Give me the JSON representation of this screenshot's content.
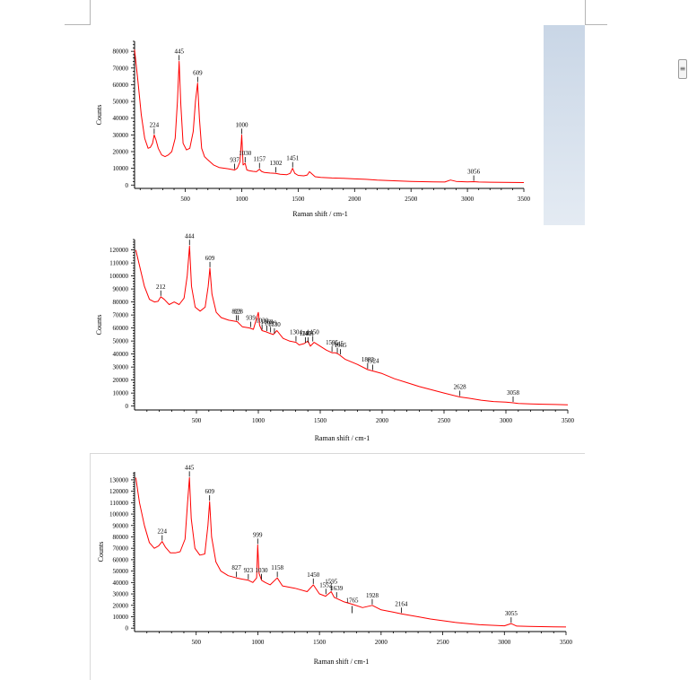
{
  "colors": {
    "spectrum": "#ff0000",
    "axis": "#000000",
    "panel_accent": "#c9d6e6"
  },
  "icons": {
    "side_button": "menu-lines-icon"
  },
  "chart_data": [
    {
      "type": "line",
      "xlabel": "Raman shift / cm-1",
      "ylabel": "Counts",
      "xlim": [
        50,
        3500
      ],
      "ylim": [
        -2000,
        86000
      ],
      "xticks": [
        500,
        1000,
        1500,
        2000,
        2500,
        3000,
        3500
      ],
      "yticks": [
        0,
        10000,
        20000,
        30000,
        40000,
        50000,
        60000,
        70000,
        80000
      ],
      "series": [
        {
          "x": [
            50,
            80,
            110,
            140,
            170,
            190,
            210,
            224,
            240,
            260,
            290,
            320,
            350,
            380,
            410,
            430,
            445,
            460,
            480,
            510,
            540,
            570,
            590,
            609,
            625,
            645,
            670,
            700,
            750,
            800,
            850,
            900,
            937,
            960,
            985,
            1000,
            1012,
            1030,
            1045,
            1070,
            1100,
            1130,
            1157,
            1175,
            1200,
            1250,
            1302,
            1340,
            1400,
            1430,
            1451,
            1470,
            1500,
            1550,
            1580,
            1600,
            1650,
            1700,
            1800,
            1900,
            2000,
            2100,
            2200,
            2300,
            2400,
            2500,
            2600,
            2700,
            2800,
            2850,
            2900,
            2950,
            3000,
            3056,
            3100,
            3200,
            3300,
            3400,
            3500
          ],
          "y": [
            81000,
            62000,
            42000,
            28000,
            22000,
            22500,
            25000,
            30000,
            27000,
            22000,
            18000,
            17000,
            18000,
            20000,
            28000,
            50000,
            74000,
            48000,
            25000,
            21000,
            22000,
            32000,
            50000,
            61000,
            40000,
            22000,
            17000,
            15000,
            12000,
            10500,
            10000,
            9500,
            9000,
            10000,
            14000,
            30000,
            12000,
            13000,
            9000,
            8500,
            8200,
            8000,
            9500,
            8200,
            7500,
            7200,
            7000,
            6500,
            6200,
            7000,
            10000,
            7000,
            5800,
            5500,
            6000,
            8000,
            5000,
            4600,
            4200,
            4000,
            3700,
            3400,
            3000,
            2700,
            2400,
            2200,
            2000,
            1900,
            1800,
            3000,
            2200,
            2000,
            1900,
            2000,
            1800,
            1700,
            1600,
            1550,
            1500
          ]
        }
      ],
      "annotations": [
        {
          "label": "224",
          "x": 224,
          "y": 30000
        },
        {
          "label": "445",
          "x": 445,
          "y": 74000
        },
        {
          "label": "609",
          "x": 609,
          "y": 61000
        },
        {
          "label": "937",
          "x": 937,
          "y": 9000
        },
        {
          "label": "1000",
          "x": 1000,
          "y": 30000
        },
        {
          "label": "1030",
          "x": 1030,
          "y": 13000
        },
        {
          "label": "1157",
          "x": 1157,
          "y": 9500
        },
        {
          "label": "1302",
          "x": 1302,
          "y": 7000
        },
        {
          "label": "1451",
          "x": 1451,
          "y": 10000
        },
        {
          "label": "3056",
          "x": 3056,
          "y": 2000
        }
      ]
    },
    {
      "type": "line",
      "xlabel": "Raman shift / cm-1",
      "ylabel": "Counts",
      "xlim": [
        0,
        3500
      ],
      "ylim": [
        -3000,
        128000
      ],
      "xticks": [
        500,
        1000,
        1500,
        2000,
        2500,
        3000,
        3500
      ],
      "yticks": [
        0,
        10000,
        20000,
        30000,
        40000,
        50000,
        60000,
        70000,
        80000,
        90000,
        100000,
        110000,
        120000
      ],
      "series": [
        {
          "x": [
            10,
            40,
            80,
            120,
            160,
            190,
            212,
            240,
            280,
            320,
            360,
            400,
            425,
            444,
            460,
            490,
            530,
            570,
            595,
            609,
            625,
            660,
            700,
            760,
            823,
            828,
            870,
            930,
            960,
            1000,
            1010,
            1030,
            1065,
            1090,
            1120,
            1150,
            1200,
            1250,
            1304,
            1330,
            1370,
            1400,
            1420,
            1450,
            1500,
            1550,
            1595,
            1620,
            1645,
            1660,
            1700,
            1800,
            1883,
            1924,
            2000,
            2100,
            2200,
            2300,
            2400,
            2500,
            2628,
            2700,
            2800,
            2900,
            3000,
            3058,
            3100,
            3200,
            3300,
            3400,
            3500
          ],
          "y": [
            120000,
            108000,
            92000,
            82000,
            80000,
            80500,
            84000,
            82000,
            78000,
            80000,
            78000,
            83000,
            100000,
            123000,
            92000,
            76000,
            73000,
            76000,
            92000,
            106000,
            86000,
            72000,
            68000,
            66000,
            65000,
            65000,
            61000,
            60000,
            59000,
            72000,
            62000,
            58000,
            57000,
            56000,
            55000,
            58000,
            52000,
            50000,
            49000,
            47000,
            48000,
            50000,
            46000,
            49000,
            46000,
            43000,
            41000,
            41000,
            40000,
            39000,
            36000,
            32000,
            28000,
            27000,
            25000,
            21000,
            18000,
            15000,
            12500,
            10000,
            7000,
            6000,
            4500,
            3500,
            3000,
            2500,
            2000,
            1700,
            1400,
            1200,
            1000
          ]
        }
      ],
      "annotations": [
        {
          "label": "212",
          "x": 212,
          "y": 84000
        },
        {
          "label": "444",
          "x": 444,
          "y": 123000
        },
        {
          "label": "609",
          "x": 609,
          "y": 106000
        },
        {
          "label": "823",
          "x": 823,
          "y": 65000
        },
        {
          "label": "828",
          "x": 838,
          "y": 65000
        },
        {
          "label": "939",
          "x": 939,
          "y": 60000
        },
        {
          "label": "1030",
          "x": 1030,
          "y": 58000
        },
        {
          "label": "1069",
          "x": 1069,
          "y": 57000
        },
        {
          "label": "1099",
          "x": 1099,
          "y": 56000
        },
        {
          "label": "1130",
          "x": 1130,
          "y": 55000
        },
        {
          "label": "1304",
          "x": 1304,
          "y": 49000
        },
        {
          "label": "1381",
          "x": 1381,
          "y": 48000
        },
        {
          "label": "1401",
          "x": 1401,
          "y": 48000
        },
        {
          "label": "1450",
          "x": 1440,
          "y": 49000
        },
        {
          "label": "1595",
          "x": 1595,
          "y": 41000
        },
        {
          "label": "1645",
          "x": 1638,
          "y": 40000
        },
        {
          "label": "1665",
          "x": 1663,
          "y": 39000
        },
        {
          "label": "1883",
          "x": 1883,
          "y": 28000
        },
        {
          "label": "1924",
          "x": 1924,
          "y": 27000
        },
        {
          "label": "2628",
          "x": 2628,
          "y": 7000
        },
        {
          "label": "3058",
          "x": 3058,
          "y": 2500
        }
      ]
    },
    {
      "type": "line",
      "xlabel": "Raman shift / cm-1",
      "ylabel": "Counts",
      "xlim": [
        0,
        3500
      ],
      "ylim": [
        -3000,
        137000
      ],
      "xticks": [
        500,
        1000,
        1500,
        2000,
        2500,
        3000,
        3500
      ],
      "yticks": [
        0,
        10000,
        20000,
        30000,
        40000,
        50000,
        60000,
        70000,
        80000,
        90000,
        100000,
        110000,
        120000,
        130000
      ],
      "series": [
        {
          "x": [
            10,
            40,
            80,
            120,
            160,
            195,
            224,
            250,
            290,
            330,
            370,
            410,
            430,
            445,
            460,
            490,
            530,
            570,
            595,
            609,
            625,
            660,
            700,
            760,
            827,
            870,
            923,
            960,
            990,
            999,
            1010,
            1030,
            1060,
            1100,
            1158,
            1200,
            1300,
            1400,
            1450,
            1500,
            1550,
            1595,
            1620,
            1639,
            1700,
            1765,
            1850,
            1928,
            2000,
            2100,
            2164,
            2300,
            2400,
            2500,
            2600,
            2700,
            2800,
            2900,
            3000,
            3055,
            3100,
            3200,
            3300,
            3400,
            3500
          ],
          "y": [
            132000,
            110000,
            90000,
            75000,
            70000,
            72000,
            76000,
            71000,
            66000,
            66000,
            67000,
            78000,
            110000,
            132000,
            96000,
            70000,
            64000,
            65000,
            90000,
            111000,
            80000,
            58000,
            50000,
            46000,
            44000,
            43000,
            42000,
            40000,
            44000,
            73000,
            48000,
            42000,
            40000,
            38000,
            44000,
            37000,
            35000,
            32000,
            38000,
            30000,
            28000,
            32000,
            27000,
            26000,
            23000,
            21000,
            18000,
            20000,
            16000,
            14000,
            12500,
            10000,
            8000,
            6500,
            5000,
            4000,
            3000,
            2500,
            2000,
            4000,
            1800,
            1500,
            1300,
            1100,
            1000
          ]
        }
      ],
      "annotations": [
        {
          "label": "224",
          "x": 224,
          "y": 76000
        },
        {
          "label": "445",
          "x": 445,
          "y": 132000
        },
        {
          "label": "609",
          "x": 609,
          "y": 111000
        },
        {
          "label": "827",
          "x": 827,
          "y": 44000
        },
        {
          "label": "923",
          "x": 923,
          "y": 42000
        },
        {
          "label": "999",
          "x": 999,
          "y": 73000
        },
        {
          "label": "1030",
          "x": 1030,
          "y": 42000
        },
        {
          "label": "1158",
          "x": 1158,
          "y": 44000
        },
        {
          "label": "1450",
          "x": 1450,
          "y": 38000
        },
        {
          "label": "1552",
          "x": 1552,
          "y": 29000
        },
        {
          "label": "1595",
          "x": 1595,
          "y": 32000
        },
        {
          "label": "1639",
          "x": 1639,
          "y": 26000
        },
        {
          "label": "1765",
          "x": 1765,
          "y": 21000,
          "below": true
        },
        {
          "label": "1928",
          "x": 1928,
          "y": 20000
        },
        {
          "label": "2164",
          "x": 2164,
          "y": 12500
        },
        {
          "label": "3055",
          "x": 3055,
          "y": 4000
        }
      ]
    }
  ]
}
